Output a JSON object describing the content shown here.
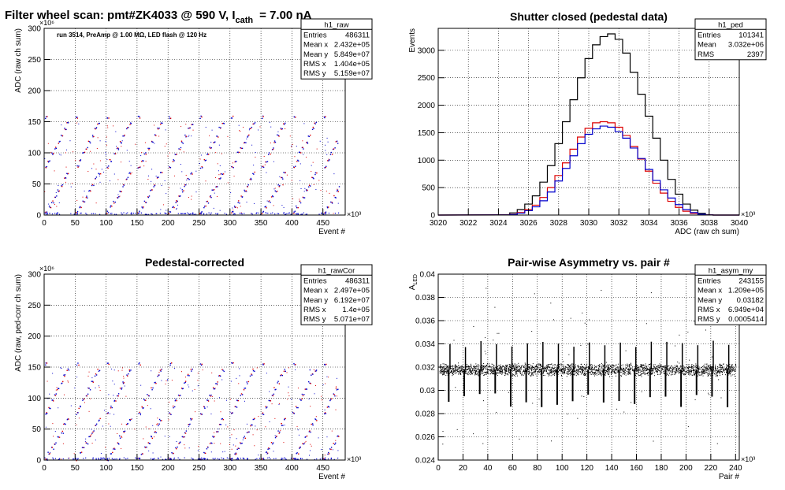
{
  "header": {
    "title_main": "Filter wheel scan: pmt#ZK4033 @   590 V, I",
    "title_sub": "cath",
    "title_tail": "= 7.00 nA",
    "run_note": "run 3514, PreAmp @ 1.00 MΩ, LED flash @  120 Hz"
  },
  "colors": {
    "black": "#000000",
    "red": "#dd0000",
    "blue": "#0000cc",
    "grid": "#000000"
  },
  "chart_data": [
    {
      "id": "raw",
      "type": "scatter",
      "title": "",
      "xlabel": "Event #",
      "ylabel": "ADC (raw ch sum)",
      "xlim": [
        0,
        486
      ],
      "ylim": [
        0,
        300
      ],
      "x_ticks": [
        0,
        50,
        100,
        150,
        200,
        250,
        300,
        350,
        400,
        450
      ],
      "y_ticks": [
        0,
        50,
        100,
        150,
        200,
        250,
        300
      ],
      "x_exp": "×10³",
      "y_exp": "×10⁶",
      "grid": true,
      "event_period": 50,
      "bands": [
        5,
        14,
        22,
        30,
        40,
        48,
        60,
        68,
        78,
        88,
        100,
        108,
        118,
        128,
        140,
        148,
        158
      ],
      "stats": {
        "name": "h1_raw",
        "rows": [
          [
            "Entries",
            "486311"
          ],
          [
            "Mean x",
            "2.432e+05"
          ],
          [
            "Mean y",
            "5.849e+07"
          ],
          [
            "RMS x",
            "1.404e+05"
          ],
          [
            "RMS y",
            "5.159e+07"
          ]
        ]
      }
    },
    {
      "id": "ped",
      "type": "line",
      "title": "Shutter closed (pedestal data)",
      "xlabel": "ADC (raw ch sum)",
      "ylabel": "Events",
      "xlim": [
        3020,
        3040
      ],
      "ylim": [
        0,
        3400
      ],
      "x_ticks": [
        3020,
        3022,
        3024,
        3026,
        3028,
        3030,
        3032,
        3034,
        3036,
        3038,
        3040
      ],
      "y_ticks": [
        0,
        500,
        1000,
        1500,
        2000,
        2500,
        3000
      ],
      "x_exp": "×10³",
      "y_exp": "",
      "grid": true,
      "series": [
        {
          "color": "black",
          "x": [
            3024.5,
            3025,
            3025.5,
            3026,
            3026.5,
            3027,
            3027.5,
            3028,
            3028.5,
            3029,
            3029.5,
            3030,
            3030.5,
            3031,
            3031.5,
            3032,
            3032.5,
            3033,
            3033.5,
            3034,
            3034.5,
            3035,
            3035.5,
            3036,
            3036.5,
            3037,
            3037.5,
            3038
          ],
          "values": [
            5,
            40,
            100,
            200,
            350,
            600,
            900,
            1300,
            1700,
            2100,
            2500,
            2850,
            3100,
            3250,
            3300,
            3200,
            2950,
            2600,
            2200,
            1800,
            1400,
            1000,
            650,
            380,
            200,
            90,
            30,
            5
          ]
        },
        {
          "color": "red",
          "x": [
            3024.5,
            3025,
            3025.5,
            3026,
            3026.5,
            3027,
            3027.5,
            3028,
            3028.5,
            3029,
            3029.5,
            3030,
            3030.5,
            3031,
            3031.5,
            3032,
            3032.5,
            3033,
            3033.5,
            3034,
            3034.5,
            3035,
            3035.5,
            3036,
            3036.5,
            3037,
            3037.5,
            3038
          ],
          "values": [
            2,
            15,
            45,
            100,
            180,
            320,
            500,
            720,
            950,
            1200,
            1420,
            1580,
            1680,
            1700,
            1680,
            1600,
            1450,
            1250,
            1020,
            800,
            580,
            400,
            250,
            140,
            70,
            30,
            10,
            2
          ]
        },
        {
          "color": "blue",
          "x": [
            3024.5,
            3025,
            3025.5,
            3026,
            3026.5,
            3027,
            3027.5,
            3028,
            3028.5,
            3029,
            3029.5,
            3030,
            3030.5,
            3031,
            3031.5,
            3032,
            3032.5,
            3033,
            3033.5,
            3034,
            3034.5,
            3035,
            3035.5,
            3036,
            3036.5,
            3037,
            3037.5,
            3038
          ],
          "values": [
            2,
            12,
            35,
            80,
            150,
            260,
            420,
            620,
            850,
            1080,
            1300,
            1470,
            1570,
            1620,
            1600,
            1520,
            1400,
            1220,
            1030,
            830,
            630,
            460,
            310,
            190,
            100,
            45,
            15,
            3
          ]
        }
      ],
      "stats": {
        "name": "h1_ped",
        "rows": [
          [
            "Entries",
            "101341"
          ],
          [
            "Mean",
            "3.032e+06"
          ],
          [
            "RMS",
            "2397"
          ]
        ]
      }
    },
    {
      "id": "rawCor",
      "type": "scatter",
      "title": "Pedestal-corrected",
      "xlabel": "Event #",
      "ylabel": "ADC (raw, ped-corr ch sum)",
      "xlim": [
        0,
        486
      ],
      "ylim": [
        0,
        300
      ],
      "x_ticks": [
        0,
        50,
        100,
        150,
        200,
        250,
        300,
        350,
        400,
        450
      ],
      "y_ticks": [
        0,
        50,
        100,
        150,
        200,
        250,
        300
      ],
      "x_exp": "×10³",
      "y_exp": "×10⁶",
      "grid": true,
      "event_period": 50,
      "bands": [
        2,
        12,
        20,
        28,
        38,
        46,
        58,
        66,
        76,
        86,
        98,
        106,
        116,
        126,
        138,
        146,
        156
      ],
      "stats": {
        "name": "h1_rawCor",
        "rows": [
          [
            "Entries",
            "486311"
          ],
          [
            "Mean x",
            "2.497e+05"
          ],
          [
            "Mean y",
            "6.192e+07"
          ],
          [
            "RMS x",
            "1.4e+05"
          ],
          [
            "RMS y",
            "5.071e+07"
          ]
        ]
      }
    },
    {
      "id": "asym",
      "type": "scatter",
      "title": "Pair-wise Asymmetry vs. pair #",
      "xlabel": "Pair #",
      "ylabel": "A",
      "ylabel_sub": "LED",
      "xlim": [
        0,
        243
      ],
      "ylim": [
        0.024,
        0.04
      ],
      "x_ticks": [
        0,
        20,
        40,
        60,
        80,
        100,
        120,
        140,
        160,
        180,
        200,
        220,
        240
      ],
      "y_ticks": [
        0.024,
        0.026,
        0.028,
        0.03,
        0.032,
        0.034,
        0.036,
        0.038,
        0.04
      ],
      "x_exp": "×10³",
      "y_exp": "",
      "grid": true,
      "band_center": 0.0318,
      "band_halfwidth": 0.0006,
      "dip_period": 12.5,
      "dip_depth": 0.0285,
      "stats": {
        "name": "h1_asym_my",
        "rows": [
          [
            "Entries",
            "243155"
          ],
          [
            "Mean x",
            "1.209e+05"
          ],
          [
            "Mean y",
            "0.03182"
          ],
          [
            "RMS x",
            "6.949e+04"
          ],
          [
            "RMS y",
            "0.0005414"
          ]
        ]
      }
    }
  ]
}
